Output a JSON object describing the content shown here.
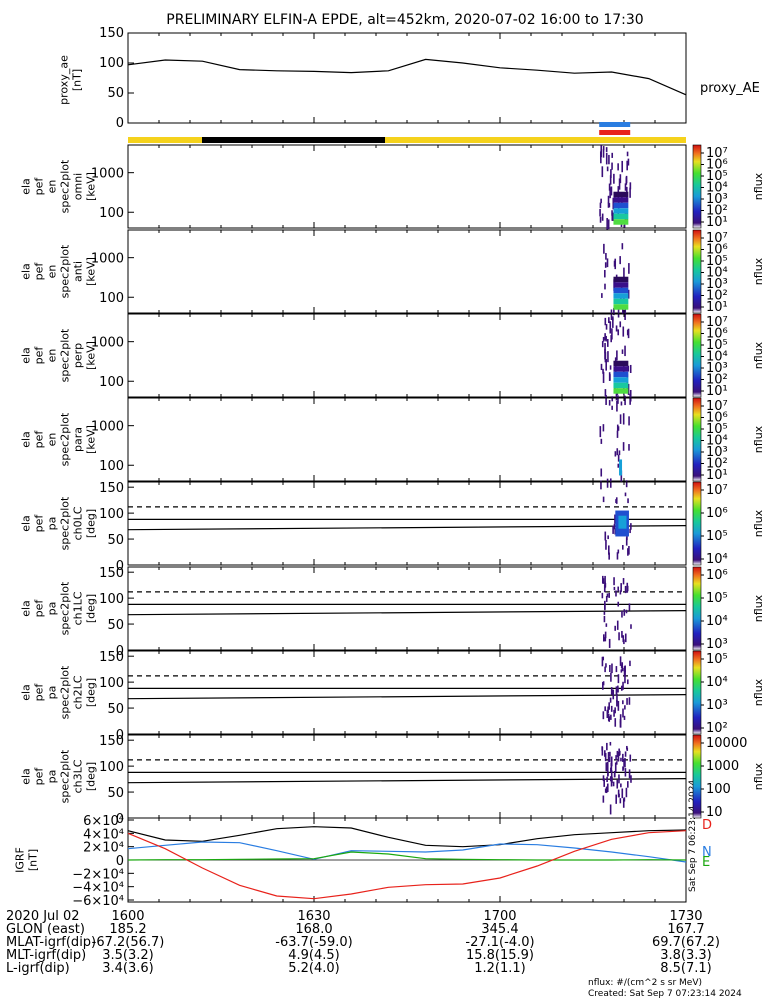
{
  "title": "PRELIMINARY ELFIN-A EPDE, alt=452km, 2020-07-02 16:00 to 17:30",
  "colors": {
    "yellow": "#f5d21c",
    "black": "#000000",
    "blue": "#2a7de1",
    "red": "#e8221b",
    "green": "#1aa80f"
  },
  "panels": {
    "ae": {
      "ylabel": [
        "proxy_ae",
        "[nT]"
      ],
      "yticks": [
        "150",
        "100",
        "50",
        "0"
      ],
      "legend": "proxy_AE"
    },
    "energy": [
      {
        "ylabel": [
          "ela",
          "pef",
          "en",
          "spec2plot",
          "omni",
          "[keV]"
        ],
        "yticks": [
          "1000",
          "100"
        ]
      },
      {
        "ylabel": [
          "ela",
          "pef",
          "en",
          "spec2plot",
          "anti",
          "[keV]"
        ],
        "yticks": [
          "1000",
          "100"
        ]
      },
      {
        "ylabel": [
          "ela",
          "pef",
          "en",
          "spec2plot",
          "perp",
          "[keV]"
        ],
        "yticks": [
          "1000",
          "100"
        ]
      },
      {
        "ylabel": [
          "ela",
          "pef",
          "en",
          "spec2plot",
          "para",
          "[keV]"
        ],
        "yticks": [
          "1000",
          "100"
        ]
      }
    ],
    "pitch": [
      {
        "ylabel": [
          "ela",
          "pef",
          "pa",
          "spec2plot",
          "ch0LC",
          "[deg]"
        ],
        "yticks": [
          "150",
          "100",
          "50",
          "0"
        ]
      },
      {
        "ylabel": [
          "ela",
          "pef",
          "pa",
          "spec2plot",
          "ch1LC",
          "[deg]"
        ],
        "yticks": [
          "150",
          "100",
          "50",
          "0"
        ]
      },
      {
        "ylabel": [
          "ela",
          "pef",
          "pa",
          "spec2plot",
          "ch2LC",
          "[deg]"
        ],
        "yticks": [
          "150",
          "100",
          "50",
          "0"
        ]
      },
      {
        "ylabel": [
          "ela",
          "pef",
          "pa",
          "spec2plot",
          "ch3LC",
          "[deg]"
        ],
        "yticks": [
          "150",
          "100",
          "50",
          "0"
        ]
      }
    ],
    "igrf": {
      "ylabel": [
        "IGRF",
        "[nT]"
      ],
      "yticks": [
        "6×10⁴",
        "4×10⁴",
        "2×10⁴",
        "0",
        "−2×10⁴",
        "−4×10⁴",
        "−6×10⁴"
      ],
      "legend": [
        "D",
        "N",
        "E"
      ],
      "stamp": "Sat Sep  7 06:23:14 2024"
    }
  },
  "colorbars": [
    {
      "label": "nflux",
      "ticks": [
        "10⁷",
        "10⁶",
        "10⁵",
        "10⁴",
        "10³",
        "10²",
        "10¹"
      ]
    },
    {
      "label": "nflux",
      "ticks": [
        "10⁷",
        "10⁶",
        "10⁵",
        "10⁴",
        "10³",
        "10²",
        "10¹"
      ]
    },
    {
      "label": "nflux",
      "ticks": [
        "10⁷",
        "10⁶",
        "10⁵",
        "10⁴",
        "10³",
        "10²",
        "10¹"
      ]
    },
    {
      "label": "nflux",
      "ticks": [
        "10⁷",
        "10⁶",
        "10⁵",
        "10⁴",
        "10³",
        "10²",
        "10¹"
      ]
    },
    {
      "label": "nflux",
      "ticks": [
        "10⁷",
        "10⁶",
        "10⁵",
        "10⁴"
      ]
    },
    {
      "label": "nflux",
      "ticks": [
        "10⁶",
        "10⁵",
        "10⁴",
        "10³"
      ]
    },
    {
      "label": "nflux",
      "ticks": [
        "10⁵",
        "10⁴",
        "10³",
        "10²"
      ]
    },
    {
      "label": "nflux",
      "ticks": [
        "10000",
        "1000",
        "100",
        "10"
      ]
    }
  ],
  "orbit_table": {
    "rows": [
      {
        "label": "2020 Jul 02",
        "values": [
          "1600",
          "1630",
          "1700",
          "1730"
        ]
      },
      {
        "label": "GLON (east)",
        "values": [
          "185.2",
          "168.0",
          "345.4",
          "167.7"
        ]
      },
      {
        "label": "MLAT-igrf(dip)",
        "values": [
          "-67.2(56.7)",
          "-63.7(-59.0)",
          "-27.1(-4.0)",
          "69.7(67.2)"
        ]
      },
      {
        "label": "MLT-igrf(dip)",
        "values": [
          "3.5(3.2)",
          "4.9(4.5)",
          "15.8(15.9)",
          "3.8(3.3)"
        ]
      },
      {
        "label": "L-igrf(dip)",
        "values": [
          "3.4(3.6)",
          "5.2(4.0)",
          "1.2(1.1)",
          "8.5(7.1)"
        ]
      }
    ]
  },
  "footer": {
    "units": "nflux: #/(cm^2 s sr MeV)",
    "created": "Created: Sat Sep  7 07:23:14 2024"
  },
  "chart_data": {
    "type": "line",
    "title": "PRELIMINARY ELFIN-A EPDE, alt=452km, 2020-07-02 16:00 to 17:30",
    "x_range": [
      0,
      90
    ],
    "x_ticks": [
      "1600",
      "1630",
      "1700",
      "1730"
    ],
    "series": [
      {
        "name": "proxy_AE",
        "x": [
          0,
          6,
          12,
          18,
          24,
          30,
          36,
          42,
          48,
          54,
          60,
          66,
          72,
          78,
          84,
          90
        ],
        "values": [
          97,
          105,
          103,
          89,
          87,
          86,
          84,
          87,
          106,
          100,
          92,
          88,
          83,
          85,
          74,
          47
        ],
        "ylim": [
          0,
          150
        ]
      },
      {
        "name": "D",
        "x": [
          0,
          6,
          12,
          18,
          24,
          30,
          36,
          42,
          48,
          54,
          60,
          66,
          72,
          78,
          84,
          90
        ],
        "values": [
          40000,
          17000,
          -12000,
          -38000,
          -54000,
          -58000,
          -51000,
          -41000,
          -37000,
          -36000,
          -27000,
          -9000,
          13000,
          31000,
          41000,
          44000
        ],
        "ylim": [
          -60000,
          60000
        ]
      },
      {
        "name": "N",
        "x": [
          0,
          6,
          12,
          18,
          24,
          30,
          36,
          42,
          48,
          54,
          60,
          66,
          72,
          78,
          84,
          90
        ],
        "values": [
          17000,
          22000,
          27000,
          26000,
          14000,
          1000,
          14000,
          13000,
          12000,
          15000,
          24000,
          23000,
          18000,
          12000,
          5000,
          -3000
        ],
        "ylim": [
          -60000,
          60000
        ]
      },
      {
        "name": "E",
        "x": [
          0,
          6,
          12,
          18,
          24,
          30,
          36,
          42,
          48,
          54,
          60,
          66,
          72,
          78,
          84,
          90
        ],
        "values": [
          0,
          500,
          500,
          1000,
          1500,
          2000,
          12000,
          9000,
          2000,
          1000,
          500,
          0,
          0,
          0,
          500,
          0
        ],
        "ylim": [
          -60000,
          60000
        ]
      },
      {
        "name": "total",
        "x": [
          0,
          6,
          12,
          18,
          24,
          30,
          36,
          42,
          48,
          54,
          60,
          66,
          72,
          78,
          84,
          90
        ],
        "values": [
          44000,
          30000,
          28000,
          37000,
          47000,
          50000,
          48000,
          34000,
          22000,
          20000,
          23000,
          32000,
          38000,
          41000,
          44000,
          45000
        ],
        "ylim": [
          -60000,
          60000
        ]
      }
    ],
    "energy_ylim": [
      40,
      5000
    ],
    "pitch_ylim": [
      0,
      160
    ],
    "pitch_lines": {
      "x": [
        0,
        90
      ],
      "solid_upper": [
        88,
        88
      ],
      "solid_lower": [
        68,
        76
      ],
      "dashed": [
        112,
        112
      ]
    },
    "burst_interval_minutes": [
      76,
      81
    ],
    "bursts": [
      {
        "panel": "energy",
        "index": 0,
        "x": [
          76,
          81
        ],
        "y": [
          40,
          5000
        ]
      },
      {
        "panel": "pitch",
        "index": 0,
        "x": [
          78,
          81
        ],
        "y": [
          20,
          150
        ]
      }
    ]
  }
}
